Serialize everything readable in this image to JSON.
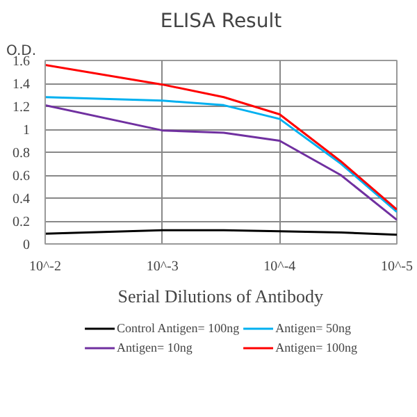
{
  "chart_data": {
    "type": "line",
    "title": "ELISA Result",
    "ylabel": "O.D.",
    "xlabel": "Serial Dilutions of Antibody",
    "x": [
      0.01,
      0.001,
      0.0003,
      0.0001,
      3e-05,
      1e-05
    ],
    "series": [
      {
        "name": "Control Antigen= 100ng",
        "color": "#000000",
        "values": [
          0.09,
          0.12,
          0.12,
          0.11,
          0.1,
          0.08
        ]
      },
      {
        "name": "Antigen= 10ng",
        "color": "#7030a0",
        "values": [
          1.21,
          0.99,
          0.97,
          0.9,
          0.6,
          0.21
        ]
      },
      {
        "name": "Antigen= 50ng",
        "color": "#00b0f0",
        "values": [
          1.28,
          1.25,
          1.21,
          1.09,
          0.7,
          0.28
        ]
      },
      {
        "name": "Antigen= 100ng",
        "color": "#ff0000",
        "values": [
          1.56,
          1.39,
          1.28,
          1.13,
          0.72,
          0.3
        ]
      }
    ],
    "xlim": [
      0.01,
      1e-05
    ],
    "xticks": [
      {
        "value": 0.01,
        "label": "10^-2"
      },
      {
        "value": 0.001,
        "label": "10^-3"
      },
      {
        "value": 0.0001,
        "label": "10^-4"
      },
      {
        "value": 1e-05,
        "label": "10^-5"
      }
    ],
    "log": "x",
    "ylim": [
      0,
      1.6
    ],
    "yticks": [
      0,
      0.2,
      0.4,
      0.6,
      0.8,
      1,
      1.2,
      1.4,
      1.6
    ],
    "grid": true,
    "legend": "bottom",
    "marker": "none"
  }
}
